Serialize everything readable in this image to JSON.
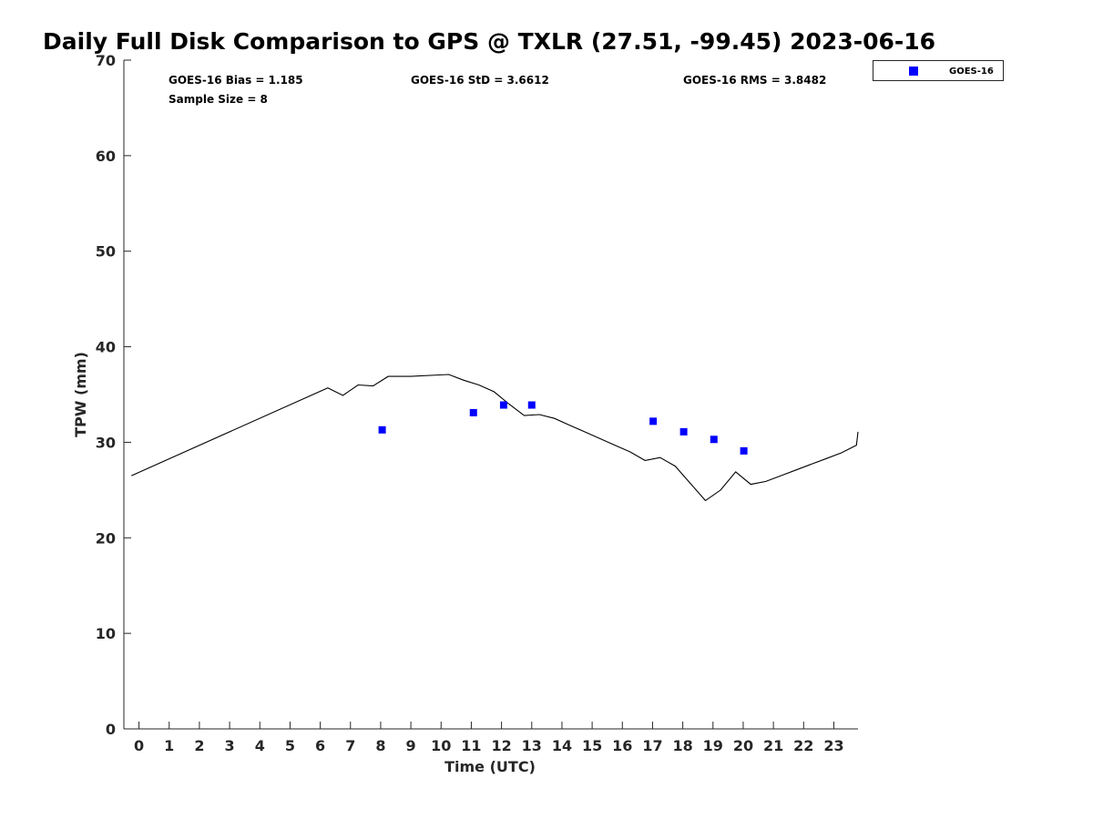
{
  "chart_data": {
    "type": "scatter",
    "title": "Daily Full Disk Comparison to GPS @ TXLR (27.51, -99.45) 2023-06-16",
    "xlabel": "Time (UTC)",
    "ylabel": "TPW (mm)",
    "xlim": [
      -0.5,
      23.8
    ],
    "ylim": [
      0,
      70
    ],
    "xticks": [
      "0",
      "1",
      "2",
      "3",
      "4",
      "5",
      "6",
      "7",
      "8",
      "9",
      "10",
      "11",
      "12",
      "13",
      "14",
      "15",
      "16",
      "17",
      "18",
      "19",
      "20",
      "21",
      "22",
      "23"
    ],
    "yticks": [
      "0",
      "10",
      "20",
      "30",
      "40",
      "50",
      "60",
      "70"
    ],
    "grid": false,
    "legend_position": "outside-top-right",
    "stats": {
      "bias": "GOES-16 Bias = 1.185",
      "std": "GOES-16 StD = 3.6612",
      "rms": "GOES-16 RMS = 3.8482",
      "sample": "Sample Size = 8"
    },
    "series": [
      {
        "name": "GOES-16",
        "kind": "scatter",
        "color": "#0000ff",
        "x": [
          8.05,
          11.07,
          12.07,
          13.0,
          17.02,
          18.03,
          19.03,
          20.02
        ],
        "y": [
          31.3,
          33.1,
          33.9,
          33.9,
          32.2,
          31.1,
          30.3,
          29.1
        ]
      },
      {
        "kind": "line",
        "color": "#000000",
        "x": [
          -0.25,
          6.25,
          6.75,
          7.25,
          7.75,
          8.25,
          9.0,
          10.25,
          10.75,
          11.25,
          11.75,
          12.25,
          12.75,
          13.25,
          13.75,
          14.25,
          14.75,
          15.25,
          15.75,
          16.25,
          16.75,
          17.25,
          17.75,
          18.25,
          18.75,
          19.25,
          19.75,
          20.25,
          20.75,
          21.25,
          21.75,
          22.25,
          22.75,
          23.25,
          23.75
        ],
        "y": [
          26.5,
          35.7,
          34.9,
          36.0,
          35.9,
          36.9,
          36.9,
          37.1,
          36.5,
          36.0,
          35.3,
          34.0,
          32.8,
          32.9,
          32.5,
          31.8,
          31.1,
          30.4,
          29.7,
          29.0,
          28.1,
          28.4,
          27.5,
          25.7,
          23.9,
          25.0,
          26.9,
          25.6,
          25.9,
          26.5,
          27.1,
          27.7,
          28.3,
          28.9,
          29.7
        ]
      }
    ],
    "line_tail": {
      "x": 23.8,
      "y": 31.1
    }
  }
}
